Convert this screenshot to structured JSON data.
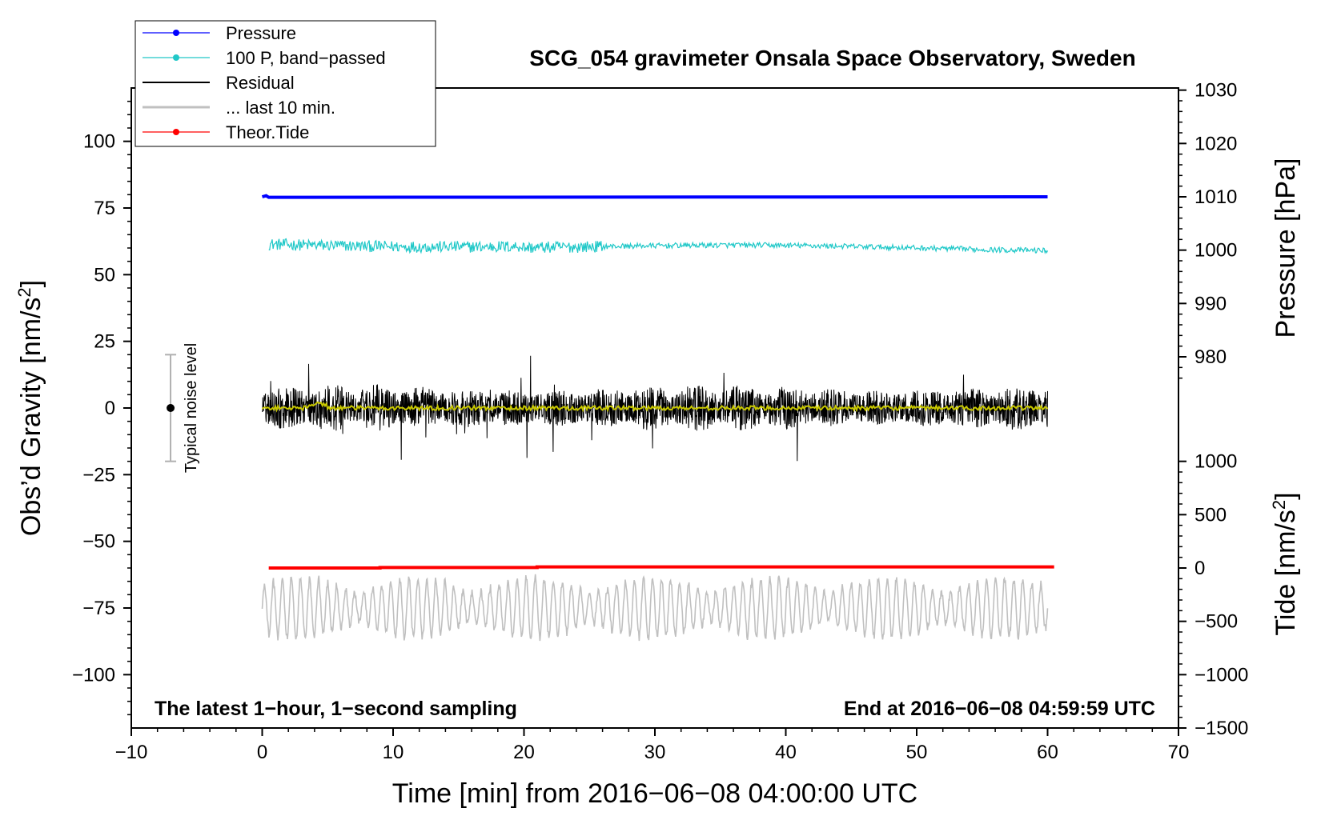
{
  "chart_data": {
    "type": "line",
    "title": "SCG_054 gravimeter Onsala Space Observatory, Sweden",
    "xlabel": "Time [min] from 2016−06−08 04:00:00 UTC",
    "ylabel_left": "Obs’d Gravity [nm/s",
    "ylabel_left_sup": "2",
    "ylabel_left_close": "]",
    "ylabel_right_pressure": "Pressure [hPa]",
    "ylabel_right_tide": "Tide [nm/s",
    "ylabel_right_tide_sup": "2",
    "ylabel_right_tide_close": "]",
    "xlim": [
      -10,
      70
    ],
    "ylim": [
      -120,
      120
    ],
    "x_ticks": [
      {
        "value": -10,
        "label": "−10"
      },
      {
        "value": 0,
        "label": "0"
      },
      {
        "value": 10,
        "label": "10"
      },
      {
        "value": 20,
        "label": "20"
      },
      {
        "value": 30,
        "label": "30"
      },
      {
        "value": 40,
        "label": "40"
      },
      {
        "value": 50,
        "label": "50"
      },
      {
        "value": 60,
        "label": "60"
      },
      {
        "value": 70,
        "label": "70"
      }
    ],
    "y_ticks_left": [
      {
        "value": 100,
        "label": "100"
      },
      {
        "value": 75,
        "label": "75"
      },
      {
        "value": 50,
        "label": "50"
      },
      {
        "value": 25,
        "label": "25"
      },
      {
        "value": 0,
        "label": "0"
      },
      {
        "value": -25,
        "label": "−25"
      },
      {
        "value": -50,
        "label": "−50"
      },
      {
        "value": -75,
        "label": "−75"
      },
      {
        "value": -100,
        "label": "−100"
      }
    ],
    "pressure_axis": {
      "ref_gravity": 80,
      "ref_hpa": 1010.4,
      "gravity_per_hpa": 2.0,
      "ticks": [
        {
          "value": 1030,
          "label": "1030"
        },
        {
          "value": 1020,
          "label": "1020"
        },
        {
          "value": 1010,
          "label": "1010"
        },
        {
          "value": 1000,
          "label": "1000"
        },
        {
          "value": 990,
          "label": "990"
        },
        {
          "value": 980,
          "label": "980"
        }
      ]
    },
    "tide_axis": {
      "ref_gravity": -60,
      "ref_tide": 0,
      "gravity_per_unit": 0.04,
      "ticks": [
        {
          "value": 1000,
          "label": "1000"
        },
        {
          "value": 500,
          "label": "500"
        },
        {
          "value": 0,
          "label": "0"
        },
        {
          "value": -500,
          "label": "−500"
        },
        {
          "value": -1000,
          "label": "−1000"
        },
        {
          "value": -1500,
          "label": "−1500"
        }
      ]
    },
    "series": [
      {
        "name": "Pressure",
        "color": "#0000ff",
        "kind": "line-dot",
        "x_range": [
          0,
          60
        ],
        "level": 79.2
      },
      {
        "name": "100 P, band−passed",
        "color": "#20c8c8",
        "kind": "line-dot",
        "x_range": [
          0.5,
          60
        ],
        "level": 61,
        "noise": 2.2,
        "offset": 2.0
      },
      {
        "name": "Residual",
        "color": "#000000",
        "kind": "line",
        "x_range": [
          0,
          60
        ],
        "level": 0,
        "noise": 9
      },
      {
        "name": "... last 10 min.",
        "color": "#c0c0c0",
        "kind": "line",
        "x_range": [
          0,
          60
        ],
        "level": -75,
        "noise": 8
      },
      {
        "name": "Theor.Tide",
        "color": "#ff0000",
        "kind": "line-dot",
        "x_range": [
          0.5,
          60.5
        ],
        "level": -60
      }
    ],
    "smoothed_residual_color": "#c8c800",
    "noise_bar": {
      "x": -7,
      "low": -20,
      "high": 20,
      "center": 0,
      "label": "Typical noise level"
    },
    "annotations": {
      "bottom_left": "The latest 1−hour, 1−second sampling",
      "bottom_right": "End at 2016−06−08 04:59:59 UTC"
    },
    "legend_position": "top-left"
  }
}
